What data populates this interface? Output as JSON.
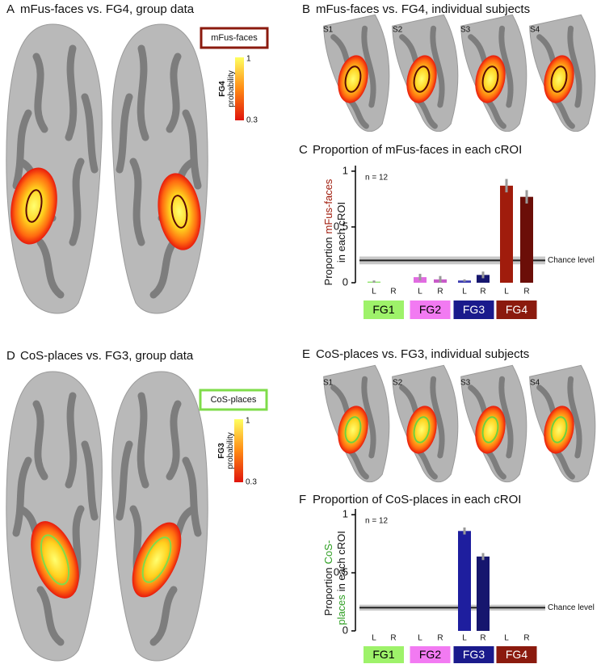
{
  "panels": {
    "a": {
      "letter": "A",
      "title": "mFus-faces vs. FG4, group data",
      "roi": "mFus-faces",
      "roi_color": "#8b1a0e",
      "colorbar": {
        "name": "FG4",
        "label": "probability",
        "max": 1,
        "min": 0.3
      }
    },
    "b": {
      "letter": "B",
      "title": "mFus-faces vs. FG4, individual subjects",
      "subjects": [
        "S1",
        "S2",
        "S3",
        "S4"
      ]
    },
    "d": {
      "letter": "D",
      "title": "CoS-places vs. FG3, group data",
      "roi": "CoS-places",
      "roi_color": "#7fdc4a",
      "colorbar": {
        "name": "FG3",
        "label": "probability",
        "max": 1,
        "min": 0.3
      }
    },
    "e": {
      "letter": "E",
      "title": "CoS-places vs. FG3, individual subjects",
      "subjects": [
        "S1",
        "S2",
        "S3",
        "S4"
      ]
    }
  },
  "chart_data": [
    {
      "type": "bar",
      "letter": "C",
      "title": "Proportion of mFus-faces in each cROI",
      "ylabel_lines": [
        [
          {
            "text": "Proportion"
          },
          {
            "text": "mFus-faces",
            "color": "#a01c0c"
          }
        ],
        [
          {
            "text": "in each cROI"
          }
        ]
      ],
      "annotation": "n = 12",
      "categories": [
        "L",
        "R",
        "L",
        "R",
        "L",
        "R",
        "L",
        "R"
      ],
      "values": [
        0.01,
        0.0,
        0.05,
        0.03,
        0.02,
        0.07,
        0.87,
        0.77
      ],
      "errors": [
        0.01,
        0.0,
        0.03,
        0.03,
        0.01,
        0.03,
        0.06,
        0.06
      ],
      "colors": [
        "#8fe36b",
        "#8fe36b",
        "#e16be1",
        "#c95ac9",
        "#3b3bb0",
        "#16166e",
        "#a01c0c",
        "#6b0e08"
      ],
      "groups": [
        {
          "name": "FG1",
          "color": "#9ef26a",
          "text_color": "#000000"
        },
        {
          "name": "FG2",
          "color": "#f27af2",
          "text_color": "#000000"
        },
        {
          "name": "FG3",
          "color": "#1a1a8c",
          "text_color": "#ffffff"
        },
        {
          "name": "FG4",
          "color": "#8b1a0e",
          "text_color": "#ffffff"
        }
      ],
      "ylim": [
        0,
        1.05
      ],
      "yticks": [
        0,
        0.5,
        1
      ],
      "chance": {
        "value": 0.2,
        "band": 0.035,
        "label": "Chance level"
      }
    },
    {
      "type": "bar",
      "letter": "F",
      "title": "Proportion of CoS-places in each cROI",
      "ylabel_lines": [
        [
          {
            "text": "Proportion"
          },
          {
            "text": "CoS-",
            "color": "#2e9e22"
          }
        ],
        [
          {
            "text": "places",
            "color": "#2e9e22"
          },
          {
            "text": "in each cROI"
          }
        ]
      ],
      "annotation": "n = 12",
      "categories": [
        "L",
        "R",
        "L",
        "R",
        "L",
        "R",
        "L",
        "R"
      ],
      "values": [
        0,
        0,
        0,
        0,
        0.86,
        0.64,
        0,
        0
      ],
      "errors": [
        0,
        0,
        0,
        0,
        0.03,
        0.03,
        0,
        0
      ],
      "colors": [
        "#8fe36b",
        "#8fe36b",
        "#e16be1",
        "#c95ac9",
        "#1e1e9e",
        "#16166e",
        "#a01c0c",
        "#6b0e08"
      ],
      "groups": [
        {
          "name": "FG1",
          "color": "#9ef26a",
          "text_color": "#000000"
        },
        {
          "name": "FG2",
          "color": "#f27af2",
          "text_color": "#000000"
        },
        {
          "name": "FG3",
          "color": "#1a1a8c",
          "text_color": "#ffffff"
        },
        {
          "name": "FG4",
          "color": "#8b1a0e",
          "text_color": "#ffffff"
        }
      ],
      "ylim": [
        0,
        1.05
      ],
      "yticks": [
        0,
        0.5,
        1
      ],
      "chance": {
        "value": 0.2,
        "band": 0.025,
        "label": "Chance level"
      }
    }
  ]
}
